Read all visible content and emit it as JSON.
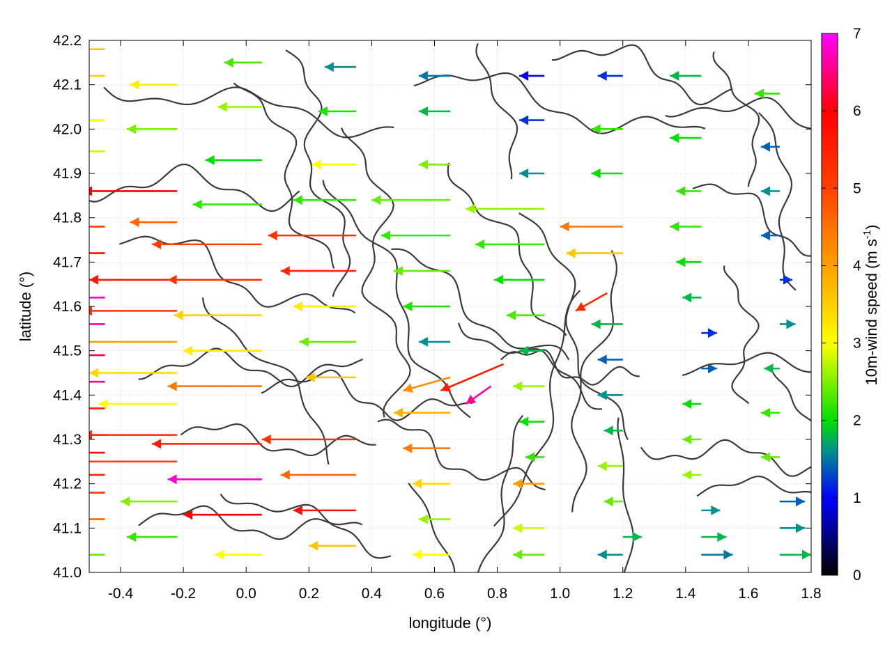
{
  "chart_data": {
    "type": "quiver",
    "xlabel": "longitude (°)",
    "ylabel": "latitude (°)",
    "colorbar_label_main": "10m-wind speed (m s",
    "colorbar_label_exp": "-1",
    "colorbar_label_close": ")",
    "xlim": [
      -0.5,
      1.8
    ],
    "ylim": [
      41.0,
      42.2
    ],
    "xticks": [
      -0.4,
      -0.2,
      0.0,
      0.2,
      0.4,
      0.6,
      0.8,
      1.0,
      1.2,
      1.4,
      1.6,
      1.8
    ],
    "xtick_labels": [
      "-0.4",
      "-0.2",
      "0.0",
      "0.2",
      "0.4",
      "0.6",
      "0.8",
      "1.0",
      "1.2",
      "1.4",
      "1.6",
      "1.8"
    ],
    "yticks": [
      41.0,
      41.1,
      41.2,
      41.3,
      41.4,
      41.5,
      41.6,
      41.7,
      41.8,
      41.9,
      42.0,
      42.1,
      42.2
    ],
    "ytick_labels": [
      "41.0",
      "41.1",
      "41.2",
      "41.3",
      "41.4",
      "41.5",
      "41.6",
      "41.7",
      "41.8",
      "41.9",
      "42.0",
      "42.1",
      "42.2"
    ],
    "colorbar_range": [
      0,
      7
    ],
    "colorbar_ticks": [
      0,
      1,
      2,
      3,
      4,
      5,
      6,
      7
    ],
    "colorbar_tick_labels": [
      "0",
      "1",
      "2",
      "3",
      "4",
      "5",
      "6",
      "7"
    ],
    "colormap": [
      {
        "value": 0,
        "color": "#000000"
      },
      {
        "value": 1,
        "color": "#0000ff"
      },
      {
        "value": 1.6,
        "color": "#009090"
      },
      {
        "value": 2,
        "color": "#00e000"
      },
      {
        "value": 3,
        "color": "#ffff00"
      },
      {
        "value": 4,
        "color": "#ffa000"
      },
      {
        "value": 5,
        "color": "#ff4000"
      },
      {
        "value": 6,
        "color": "#ff0000"
      },
      {
        "value": 7,
        "color": "#ff00ff"
      }
    ],
    "grid": true,
    "vectors": [
      {
        "x": -0.45,
        "y": 41.62,
        "u": 0.28,
        "v": 0.0,
        "speed": 6.8
      },
      {
        "x": -0.45,
        "y": 41.56,
        "u": 0.36,
        "v": 0.0,
        "speed": 6.7
      },
      {
        "x": -0.45,
        "y": 41.49,
        "u": 0.32,
        "v": 0.0,
        "speed": 6.3
      },
      {
        "x": -0.45,
        "y": 41.43,
        "u": 0.33,
        "v": 0.0,
        "speed": 6.5
      },
      {
        "x": -0.45,
        "y": 41.31,
        "u": 0.5,
        "v": 0.0,
        "speed": 6.0
      },
      {
        "x": -0.45,
        "y": 41.27,
        "u": 0.55,
        "v": 0.0,
        "speed": 5.8
      },
      {
        "x": -0.45,
        "y": 41.22,
        "u": 0.45,
        "v": 0.0,
        "speed": 5.5
      },
      {
        "x": -0.45,
        "y": 41.18,
        "u": 0.4,
        "v": 0.0,
        "speed": 5.2
      },
      {
        "x": -0.45,
        "y": 41.12,
        "u": 0.35,
        "v": 0.0,
        "speed": 4.6
      },
      {
        "x": -0.45,
        "y": 41.72,
        "u": 0.2,
        "v": 0.0,
        "speed": 5.8
      },
      {
        "x": -0.45,
        "y": 41.78,
        "u": 0.25,
        "v": 0.0,
        "speed": 5.0
      },
      {
        "x": -0.45,
        "y": 41.86,
        "u": 0.22,
        "v": 0.0,
        "speed": 3.2
      },
      {
        "x": -0.45,
        "y": 41.95,
        "u": 0.24,
        "v": 0.0,
        "speed": 2.8
      },
      {
        "x": -0.45,
        "y": 42.02,
        "u": 0.2,
        "v": 0.0,
        "speed": 3.0
      },
      {
        "x": -0.45,
        "y": 42.12,
        "u": 0.2,
        "v": 0.0,
        "speed": 3.5
      },
      {
        "x": -0.45,
        "y": 42.18,
        "u": 0.18,
        "v": 0.0,
        "speed": 3.6
      },
      {
        "x": -0.45,
        "y": 41.37,
        "u": 0.3,
        "v": 0.0,
        "speed": 5.5
      },
      {
        "x": -0.45,
        "y": 41.04,
        "u": 0.25,
        "v": 0.0,
        "speed": 2.4
      },
      {
        "x": -0.22,
        "y": 41.86,
        "u": 0.3,
        "v": 0.0,
        "speed": 6.0
      },
      {
        "x": -0.22,
        "y": 41.66,
        "u": 0.28,
        "v": 0.0,
        "speed": 5.6
      },
      {
        "x": -0.22,
        "y": 41.59,
        "u": 0.3,
        "v": 0.0,
        "speed": 5.2
      },
      {
        "x": -0.22,
        "y": 41.52,
        "u": 0.32,
        "v": 0.0,
        "speed": 4.0
      },
      {
        "x": -0.22,
        "y": 41.45,
        "u": 0.28,
        "v": 0.0,
        "speed": 3.4
      },
      {
        "x": -0.22,
        "y": 41.38,
        "u": 0.25,
        "v": 0.0,
        "speed": 3.0
      },
      {
        "x": -0.22,
        "y": 41.31,
        "u": 0.3,
        "v": 0.0,
        "speed": 5.4
      },
      {
        "x": -0.22,
        "y": 41.25,
        "u": 0.32,
        "v": 0.0,
        "speed": 5.0
      },
      {
        "x": -0.22,
        "y": 41.16,
        "u": 0.18,
        "v": 0.0,
        "speed": 2.5
      },
      {
        "x": -0.22,
        "y": 41.08,
        "u": 0.16,
        "v": 0.0,
        "speed": 2.2
      },
      {
        "x": -0.22,
        "y": 41.79,
        "u": 0.15,
        "v": 0.0,
        "speed": 4.6
      },
      {
        "x": -0.22,
        "y": 42.0,
        "u": 0.16,
        "v": 0.0,
        "speed": 2.5
      },
      {
        "x": -0.22,
        "y": 42.1,
        "u": 0.15,
        "v": 0.0,
        "speed": 3.2
      },
      {
        "x": 0.05,
        "y": 41.74,
        "u": 0.35,
        "v": 0.0,
        "speed": 5.0
      },
      {
        "x": 0.05,
        "y": 41.66,
        "u": 0.3,
        "v": 0.0,
        "speed": 5.2
      },
      {
        "x": 0.05,
        "y": 41.58,
        "u": 0.28,
        "v": 0.0,
        "speed": 3.5
      },
      {
        "x": 0.05,
        "y": 41.5,
        "u": 0.25,
        "v": 0.0,
        "speed": 3.2
      },
      {
        "x": 0.05,
        "y": 41.42,
        "u": 0.3,
        "v": 0.0,
        "speed": 4.4
      },
      {
        "x": 0.05,
        "y": 41.29,
        "u": 0.35,
        "v": 0.0,
        "speed": 5.6
      },
      {
        "x": 0.05,
        "y": 41.21,
        "u": 0.3,
        "v": 0.0,
        "speed": 6.8
      },
      {
        "x": 0.05,
        "y": 41.13,
        "u": 0.25,
        "v": 0.0,
        "speed": 6.0
      },
      {
        "x": 0.05,
        "y": 41.83,
        "u": 0.22,
        "v": 0.0,
        "speed": 2.2
      },
      {
        "x": 0.05,
        "y": 41.93,
        "u": 0.18,
        "v": 0.0,
        "speed": 2.0
      },
      {
        "x": 0.05,
        "y": 42.05,
        "u": 0.14,
        "v": 0.0,
        "speed": 2.6
      },
      {
        "x": 0.05,
        "y": 42.15,
        "u": 0.12,
        "v": 0.0,
        "speed": 2.3
      },
      {
        "x": 0.05,
        "y": 41.04,
        "u": 0.15,
        "v": 0.0,
        "speed": 3.0
      },
      {
        "x": 0.35,
        "y": 41.76,
        "u": 0.28,
        "v": 0.0,
        "speed": 5.2
      },
      {
        "x": 0.35,
        "y": 41.68,
        "u": 0.24,
        "v": 0.0,
        "speed": 5.4
      },
      {
        "x": 0.35,
        "y": 41.6,
        "u": 0.2,
        "v": 0.0,
        "speed": 3.2
      },
      {
        "x": 0.35,
        "y": 41.52,
        "u": 0.18,
        "v": 0.0,
        "speed": 2.4
      },
      {
        "x": 0.35,
        "y": 41.44,
        "u": 0.16,
        "v": 0.0,
        "speed": 3.6
      },
      {
        "x": 0.35,
        "y": 41.3,
        "u": 0.3,
        "v": 0.0,
        "speed": 5.2
      },
      {
        "x": 0.35,
        "y": 41.22,
        "u": 0.24,
        "v": 0.0,
        "speed": 4.6
      },
      {
        "x": 0.35,
        "y": 41.14,
        "u": 0.2,
        "v": 0.0,
        "speed": 5.8
      },
      {
        "x": 0.35,
        "y": 41.84,
        "u": 0.2,
        "v": 0.0,
        "speed": 2.2
      },
      {
        "x": 0.35,
        "y": 41.92,
        "u": 0.14,
        "v": 0.0,
        "speed": 3.0
      },
      {
        "x": 0.35,
        "y": 42.04,
        "u": 0.12,
        "v": 0.0,
        "speed": 2.1
      },
      {
        "x": 0.35,
        "y": 42.14,
        "u": 0.1,
        "v": 0.0,
        "speed": 1.6
      },
      {
        "x": 0.35,
        "y": 41.06,
        "u": 0.15,
        "v": 0.0,
        "speed": 3.6
      },
      {
        "x": 0.65,
        "y": 41.76,
        "u": 0.22,
        "v": 0.0,
        "speed": 2.2
      },
      {
        "x": 0.65,
        "y": 41.68,
        "u": 0.18,
        "v": 0.0,
        "speed": 2.4
      },
      {
        "x": 0.65,
        "y": 41.6,
        "u": 0.15,
        "v": 0.0,
        "speed": 2.1
      },
      {
        "x": 0.65,
        "y": 41.52,
        "u": 0.1,
        "v": 0.0,
        "speed": 1.6
      },
      {
        "x": 0.65,
        "y": 41.44,
        "u": 0.15,
        "v": -0.03,
        "speed": 4.2
      },
      {
        "x": 0.65,
        "y": 41.36,
        "u": 0.18,
        "v": 0.0,
        "speed": 3.8
      },
      {
        "x": 0.65,
        "y": 41.28,
        "u": 0.15,
        "v": 0.0,
        "speed": 4.4
      },
      {
        "x": 0.65,
        "y": 41.2,
        "u": 0.12,
        "v": 0.0,
        "speed": 3.4
      },
      {
        "x": 0.65,
        "y": 41.12,
        "u": 0.1,
        "v": 0.0,
        "speed": 2.6
      },
      {
        "x": 0.65,
        "y": 41.84,
        "u": 0.25,
        "v": 0.0,
        "speed": 2.4
      },
      {
        "x": 0.65,
        "y": 41.92,
        "u": 0.1,
        "v": 0.0,
        "speed": 2.5
      },
      {
        "x": 0.65,
        "y": 42.04,
        "u": 0.1,
        "v": 0.0,
        "speed": 1.8
      },
      {
        "x": 0.65,
        "y": 42.12,
        "u": 0.1,
        "v": 0.0,
        "speed": 1.5
      },
      {
        "x": 0.65,
        "y": 41.04,
        "u": 0.12,
        "v": 0.0,
        "speed": 3.0
      },
      {
        "x": 0.95,
        "y": 41.74,
        "u": 0.22,
        "v": 0.0,
        "speed": 2.2
      },
      {
        "x": 0.95,
        "y": 41.66,
        "u": 0.16,
        "v": 0.0,
        "speed": 2.0
      },
      {
        "x": 0.95,
        "y": 41.58,
        "u": 0.12,
        "v": 0.0,
        "speed": 2.3
      },
      {
        "x": 0.95,
        "y": 41.5,
        "u": 0.08,
        "v": 0.0,
        "speed": 1.8
      },
      {
        "x": 0.82,
        "y": 41.47,
        "u": 0.2,
        "v": -0.06,
        "speed": 5.6
      },
      {
        "x": 0.78,
        "y": 41.42,
        "u": 0.08,
        "v": -0.04,
        "speed": 6.6
      },
      {
        "x": 0.95,
        "y": 41.42,
        "u": 0.1,
        "v": 0.0,
        "speed": 2.6
      },
      {
        "x": 0.95,
        "y": 41.34,
        "u": 0.08,
        "v": 0.0,
        "speed": 2.0
      },
      {
        "x": 0.95,
        "y": 41.26,
        "u": 0.06,
        "v": 0.0,
        "speed": 2.2
      },
      {
        "x": 0.95,
        "y": 41.2,
        "u": 0.1,
        "v": 0.0,
        "speed": 4.0
      },
      {
        "x": 0.95,
        "y": 41.1,
        "u": 0.1,
        "v": 0.0,
        "speed": 2.8
      },
      {
        "x": 0.95,
        "y": 41.82,
        "u": 0.25,
        "v": 0.0,
        "speed": 2.6
      },
      {
        "x": 0.95,
        "y": 41.9,
        "u": 0.08,
        "v": 0.0,
        "speed": 1.6
      },
      {
        "x": 0.95,
        "y": 42.02,
        "u": 0.08,
        "v": 0.0,
        "speed": 1.2
      },
      {
        "x": 0.95,
        "y": 42.12,
        "u": 0.08,
        "v": 0.0,
        "speed": 1.0
      },
      {
        "x": 0.95,
        "y": 41.04,
        "u": 0.1,
        "v": 0.0,
        "speed": 2.4
      },
      {
        "x": 1.2,
        "y": 41.78,
        "u": 0.2,
        "v": 0.0,
        "speed": 4.4
      },
      {
        "x": 1.2,
        "y": 41.72,
        "u": 0.18,
        "v": 0.0,
        "speed": 3.6
      },
      {
        "x": 1.15,
        "y": 41.63,
        "u": 0.1,
        "v": -0.04,
        "speed": 5.4
      },
      {
        "x": 1.2,
        "y": 41.56,
        "u": 0.1,
        "v": 0.0,
        "speed": 1.8
      },
      {
        "x": 1.2,
        "y": 41.48,
        "u": 0.08,
        "v": 0.0,
        "speed": 1.4
      },
      {
        "x": 1.2,
        "y": 41.4,
        "u": 0.08,
        "v": 0.0,
        "speed": 1.6
      },
      {
        "x": 1.2,
        "y": 41.32,
        "u": 0.06,
        "v": 0.0,
        "speed": 1.8
      },
      {
        "x": 1.2,
        "y": 41.24,
        "u": 0.08,
        "v": 0.0,
        "speed": 2.6
      },
      {
        "x": 1.2,
        "y": 41.16,
        "u": 0.06,
        "v": 0.0,
        "speed": 2.4
      },
      {
        "x": 1.2,
        "y": 41.08,
        "u": -0.06,
        "v": 0.0,
        "speed": 1.8
      },
      {
        "x": 1.2,
        "y": 41.9,
        "u": 0.1,
        "v": 0.0,
        "speed": 2.0
      },
      {
        "x": 1.2,
        "y": 42.0,
        "u": 0.1,
        "v": 0.0,
        "speed": 2.2
      },
      {
        "x": 1.2,
        "y": 42.12,
        "u": 0.08,
        "v": 0.0,
        "speed": 1.2
      },
      {
        "x": 1.2,
        "y": 41.04,
        "u": 0.08,
        "v": 0.0,
        "speed": 1.6
      },
      {
        "x": 1.45,
        "y": 41.78,
        "u": 0.1,
        "v": 0.0,
        "speed": 2.2
      },
      {
        "x": 1.45,
        "y": 41.7,
        "u": 0.08,
        "v": 0.0,
        "speed": 2.0
      },
      {
        "x": 1.45,
        "y": 41.62,
        "u": 0.06,
        "v": 0.0,
        "speed": 1.8
      },
      {
        "x": 1.45,
        "y": 41.54,
        "u": -0.05,
        "v": 0.0,
        "speed": 1.2
      },
      {
        "x": 1.45,
        "y": 41.46,
        "u": -0.05,
        "v": 0.0,
        "speed": 1.4
      },
      {
        "x": 1.45,
        "y": 41.38,
        "u": 0.06,
        "v": 0.0,
        "speed": 2.0
      },
      {
        "x": 1.45,
        "y": 41.3,
        "u": 0.06,
        "v": 0.0,
        "speed": 2.4
      },
      {
        "x": 1.45,
        "y": 41.22,
        "u": 0.06,
        "v": 0.0,
        "speed": 2.6
      },
      {
        "x": 1.45,
        "y": 41.14,
        "u": -0.06,
        "v": 0.0,
        "speed": 1.6
      },
      {
        "x": 1.45,
        "y": 41.08,
        "u": -0.08,
        "v": 0.0,
        "speed": 1.8
      },
      {
        "x": 1.45,
        "y": 41.04,
        "u": -0.1,
        "v": 0.0,
        "speed": 1.5
      },
      {
        "x": 1.45,
        "y": 41.86,
        "u": 0.08,
        "v": 0.0,
        "speed": 2.2
      },
      {
        "x": 1.45,
        "y": 41.98,
        "u": 0.1,
        "v": 0.0,
        "speed": 2.0
      },
      {
        "x": 1.45,
        "y": 42.12,
        "u": 0.1,
        "v": 0.0,
        "speed": 1.8
      },
      {
        "x": 1.7,
        "y": 41.76,
        "u": 0.06,
        "v": 0.0,
        "speed": 1.4
      },
      {
        "x": 1.7,
        "y": 41.66,
        "u": -0.04,
        "v": 0.0,
        "speed": 1.2
      },
      {
        "x": 1.7,
        "y": 41.56,
        "u": -0.05,
        "v": 0.0,
        "speed": 1.6
      },
      {
        "x": 1.7,
        "y": 41.46,
        "u": 0.05,
        "v": 0.0,
        "speed": 1.8
      },
      {
        "x": 1.7,
        "y": 41.36,
        "u": 0.06,
        "v": 0.0,
        "speed": 2.2
      },
      {
        "x": 1.7,
        "y": 41.26,
        "u": 0.06,
        "v": 0.0,
        "speed": 2.4
      },
      {
        "x": 1.7,
        "y": 41.16,
        "u": -0.08,
        "v": 0.0,
        "speed": 1.4
      },
      {
        "x": 1.7,
        "y": 41.1,
        "u": -0.08,
        "v": 0.0,
        "speed": 1.6
      },
      {
        "x": 1.7,
        "y": 41.04,
        "u": -0.1,
        "v": 0.0,
        "speed": 1.8
      },
      {
        "x": 1.7,
        "y": 41.86,
        "u": 0.06,
        "v": 0.0,
        "speed": 1.6
      },
      {
        "x": 1.7,
        "y": 41.96,
        "u": 0.06,
        "v": 0.0,
        "speed": 1.4
      },
      {
        "x": 1.7,
        "y": 42.08,
        "u": 0.08,
        "v": 0.0,
        "speed": 2.2
      }
    ]
  }
}
